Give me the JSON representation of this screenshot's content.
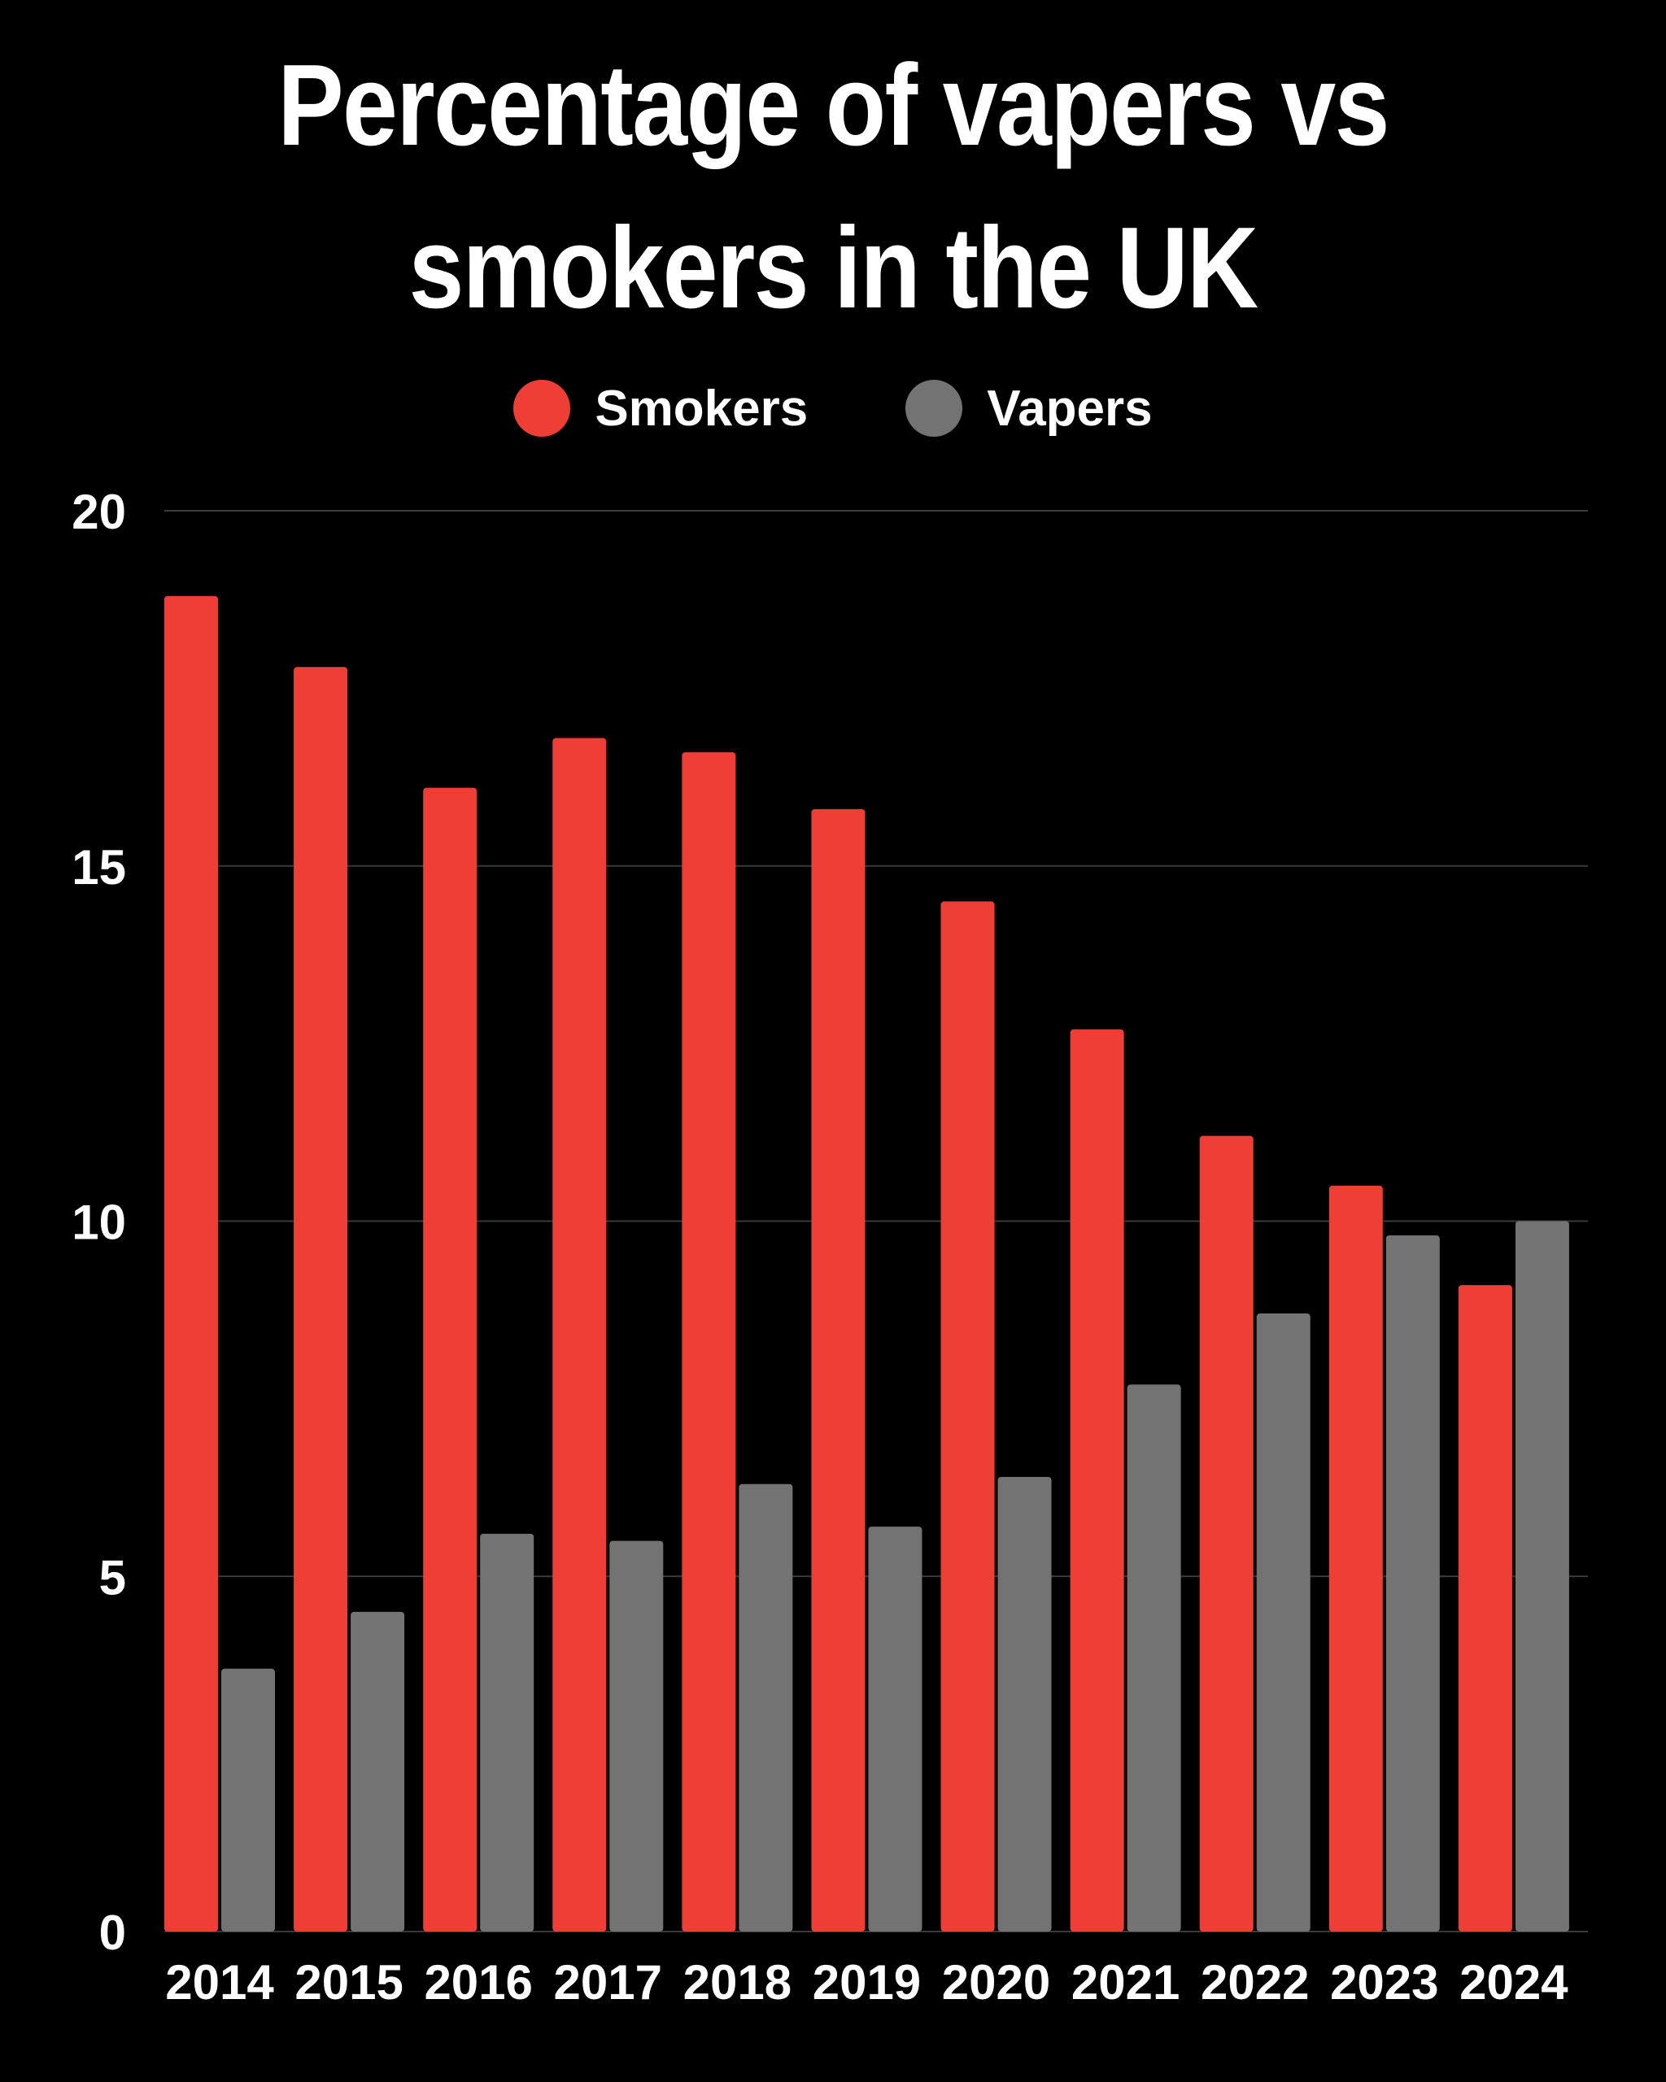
{
  "chart_data": {
    "type": "bar",
    "title": "Percentage of vapers vs smokers in the UK",
    "categories": [
      "2014",
      "2015",
      "2016",
      "2017",
      "2018",
      "2019",
      "2020",
      "2021",
      "2022",
      "2023",
      "2024"
    ],
    "series": [
      {
        "name": "Smokers",
        "color": "#ee3e36",
        "values": [
          18.8,
          17.8,
          16.1,
          16.8,
          16.6,
          15.8,
          14.5,
          12.7,
          11.2,
          10.5,
          9.1
        ]
      },
      {
        "name": "Vapers",
        "color": "#737373",
        "values": [
          3.7,
          4.5,
          5.6,
          5.5,
          6.3,
          5.7,
          6.4,
          7.7,
          8.7,
          9.8,
          10.0
        ]
      }
    ],
    "yticks": [
      "0",
      "5",
      "10",
      "15",
      "20"
    ],
    "ylim": [
      0,
      20
    ],
    "xlabel": "",
    "ylabel": "",
    "grid": true,
    "legend_position": "top-center"
  }
}
